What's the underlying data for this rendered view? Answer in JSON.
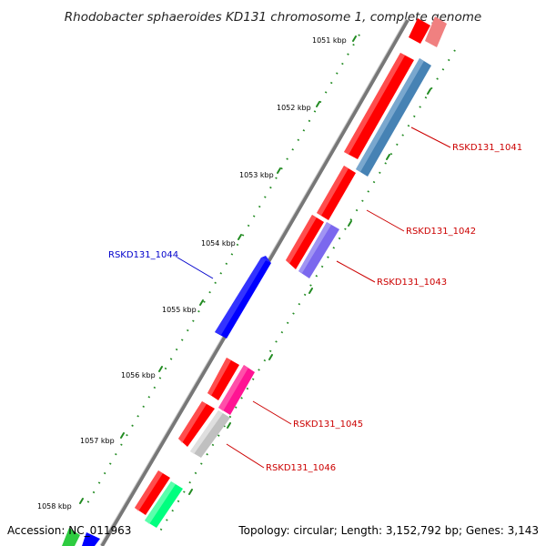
{
  "map": {
    "title": "Rhodobacter sphaeroides KD131 chromosome 1, complete genome",
    "accession": "Accession: NC_011963",
    "summary": "Topology: circular; Length: 3,152,792 bp; Genes: 3,143",
    "ticks": [
      "1051 kbp",
      "1052 kbp",
      "1053 kbp",
      "1054 kbp",
      "1055 kbp",
      "1056 kbp",
      "1057 kbp",
      "1058 kbp"
    ],
    "gene_labels": {
      "g1041": "RSKD131_1041",
      "g1042": "RSKD131_1042",
      "g1043": "RSKD131_1043",
      "g1044": "RSKD131_1044",
      "g1045": "RSKD131_1045",
      "g1046": "RSKD131_1046"
    },
    "colors": {
      "cds_red": "#ff0000",
      "steel_blue": "#4682b4",
      "purple": "#7b68ee",
      "blue": "#0000ff",
      "pink": "#ff1493",
      "gray": "#c0c0c0",
      "green": "#00ff7f",
      "label_red": "#cc0000",
      "label_blue": "#0000cc",
      "tick_green": "#228b22",
      "backbone": "#777777"
    }
  }
}
